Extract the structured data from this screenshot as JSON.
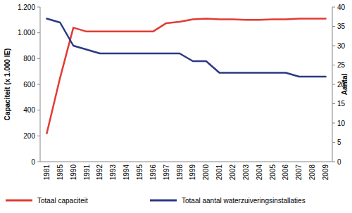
{
  "chart_data": {
    "type": "line",
    "ylabel": "Capaciteit (x 1.000 IE)",
    "y2label": "Aantal",
    "categories": [
      "1981",
      "1985",
      "1990",
      "1991",
      "1992",
      "1993",
      "1994",
      "1995",
      "1996",
      "1997",
      "1998",
      "1999",
      "2000",
      "2001",
      "2002",
      "2003",
      "2004",
      "2005",
      "2006",
      "2007",
      "2008",
      "2009"
    ],
    "series": [
      {
        "name": "Totaal capaciteit",
        "color": "#e23b33",
        "type": "line",
        "values": [
          220,
          650,
          1040,
          1010,
          1010,
          1010,
          1010,
          1010,
          1010,
          1075,
          1085,
          1105,
          1110,
          1105,
          1105,
          1100,
          1100,
          1105,
          1105,
          1110,
          1110,
          1110
        ]
      },
      {
        "name": "Totaal aantal waterzuiveringsinstallaties",
        "color": "#2c3985",
        "type": "line",
        "axis": "y2",
        "values": [
          37,
          36,
          30,
          29,
          28,
          28,
          28,
          28,
          28,
          28,
          28,
          26,
          26,
          23,
          23,
          23,
          23,
          23,
          23,
          22,
          22,
          22
        ]
      }
    ],
    "ylim": [
      0,
      1200
    ],
    "yticks": [
      0,
      200,
      400,
      600,
      800,
      {
        "value": 1000,
        "label": "1.000"
      },
      {
        "value": 1200,
        "label": "1.200"
      }
    ],
    "y2lim": [
      0,
      40
    ],
    "y2ticks": [
      0,
      5,
      10,
      15,
      20,
      25,
      30,
      35,
      40
    ],
    "grid": false,
    "legend": "bottom"
  }
}
